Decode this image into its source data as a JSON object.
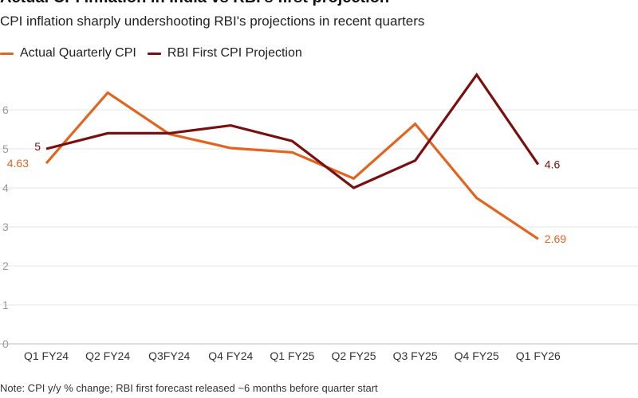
{
  "chart_data": {
    "type": "line",
    "title": "Actual CPI inflation in India vs RBI's first projection",
    "subtitle": "CPI inflation sharply undershooting RBI's projections in recent quarters",
    "categories": [
      "Q1 FY24",
      "Q2 FY24",
      "Q3FY24",
      "Q4 FY24",
      "Q1 FY25",
      "Q2 FY25",
      "Q3 FY25",
      "Q4 FY25",
      "Q1 FY26"
    ],
    "series": [
      {
        "name": "Actual Quarterly CPI",
        "color": "#e3641e",
        "values": [
          4.63,
          6.44,
          5.38,
          5.02,
          4.91,
          4.24,
          5.64,
          3.74,
          2.69
        ],
        "start_label": "4.63",
        "end_label": "2.69"
      },
      {
        "name": "RBI First CPI Projection",
        "color": "#7a0f0f",
        "values": [
          5.0,
          5.4,
          5.4,
          5.6,
          5.2,
          4.0,
          4.7,
          6.9,
          4.6
        ],
        "start_label": "5",
        "end_label": "4.6"
      }
    ],
    "ylim": [
      0,
      7
    ],
    "yticks": [
      "0",
      "1",
      "2",
      "3",
      "4",
      "5",
      "6"
    ],
    "xlabel": "",
    "ylabel": "",
    "grid": true,
    "legend": "top-left",
    "note": "Note: CPI y/y % change; RBI first forecast released ~6 months before quarter start"
  }
}
